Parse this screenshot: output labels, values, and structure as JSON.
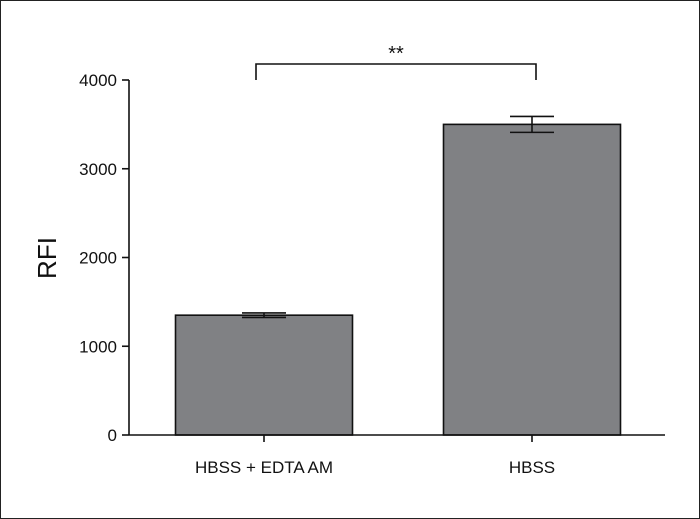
{
  "chart_data": {
    "type": "bar",
    "title": "",
    "xlabel": "",
    "ylabel": "RFI",
    "ylim": [
      0,
      4000
    ],
    "yticks": [
      0,
      1000,
      2000,
      3000,
      4000
    ],
    "categories": [
      "HBSS + EDTA AM",
      "HBSS"
    ],
    "values": [
      1350,
      3500
    ],
    "errors": [
      25,
      90
    ],
    "bar_color": "#808184",
    "grid": false,
    "significance": {
      "between": [
        "HBSS + EDTA AM",
        "HBSS"
      ],
      "label": "**"
    }
  }
}
